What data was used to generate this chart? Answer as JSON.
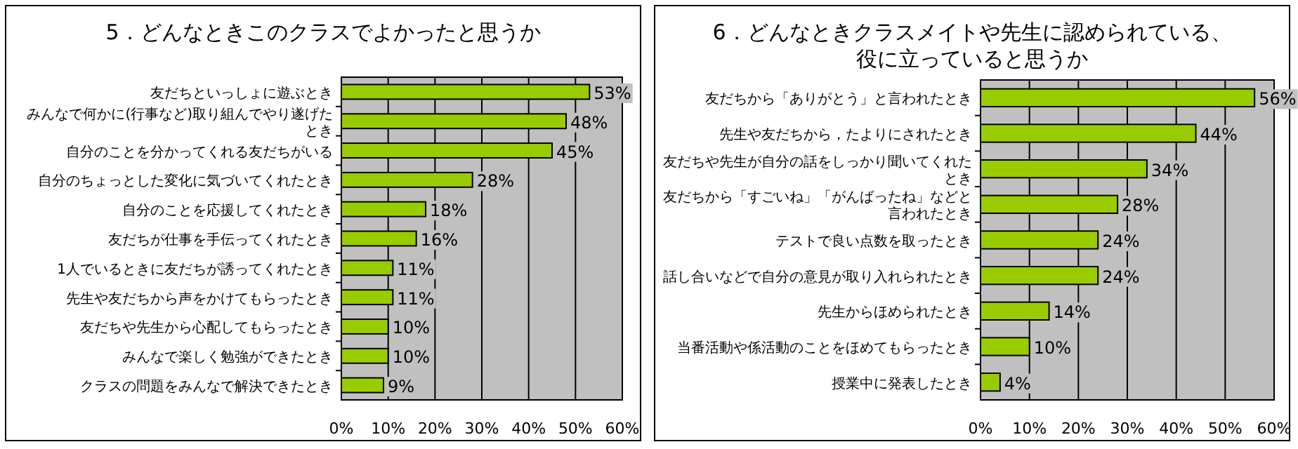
{
  "chart_data": [
    {
      "type": "bar",
      "orientation": "horizontal",
      "title": "5．どんなときこのクラスでよかったと思うか",
      "categories": [
        "友だちといっしょに遊ぶとき",
        "みんなで何かに(行事など)取り組んでやり遂げたとき",
        "自分のことを分かってくれる友だちがいる",
        "自分のちょっとした変化に気づいてくれたとき",
        "自分のことを応援してくれたとき",
        "友だちが仕事を手伝ってくれたとき",
        "1人でいるときに友だちが誘ってくれたとき",
        "先生や友だちから声をかけてもらったとき",
        "友だちや先生から心配してもらったとき",
        "みんなで楽しく勉強ができたとき",
        "クラスの問題をみんなで解決できたとき"
      ],
      "values": [
        53,
        48,
        45,
        28,
        18,
        16,
        11,
        11,
        10,
        10,
        9
      ],
      "value_labels": [
        "53%",
        "48%",
        "45%",
        "28%",
        "18%",
        "16%",
        "11%",
        "11%",
        "10%",
        "10%",
        "9%"
      ],
      "color": "#99cc00",
      "xlim": [
        0,
        60
      ],
      "xticks": [
        {
          "value": 0,
          "label": "0%"
        },
        {
          "value": 10,
          "label": "10%"
        },
        {
          "value": 20,
          "label": "20%"
        },
        {
          "value": 30,
          "label": "30%"
        },
        {
          "value": 40,
          "label": "40%"
        },
        {
          "value": 50,
          "label": "50%"
        },
        {
          "value": 60,
          "label": "60%"
        }
      ],
      "grid": "x"
    },
    {
      "type": "bar",
      "orientation": "horizontal",
      "title": "6．どんなときクラスメイトや先生に認められている、役に立っていると思うか",
      "categories": [
        "友だちから「ありがとう」と言われたとき",
        "先生や友だちから，たよりにされたとき",
        "友だちや先生が自分の話をしっかり聞いてくれたとき",
        "友だちから「すごいね」「がんばったね」などと言われたとき",
        "テストで良い点数を取ったとき",
        "話し合いなどで自分の意見が取り入れられたとき",
        "先生からほめられたとき",
        "当番活動や係活動のことをほめてもらったとき",
        "授業中に発表したとき"
      ],
      "values": [
        56,
        44,
        34,
        28,
        24,
        24,
        14,
        10,
        4
      ],
      "value_labels": [
        "56%",
        "44%",
        "34%",
        "28%",
        "24%",
        "24%",
        "14%",
        "10%",
        "4%"
      ],
      "color": "#99cc00",
      "xlim": [
        0,
        60
      ],
      "xticks": [
        {
          "value": 0,
          "label": "0%"
        },
        {
          "value": 10,
          "label": "10%"
        },
        {
          "value": 20,
          "label": "20%"
        },
        {
          "value": 30,
          "label": "30%"
        },
        {
          "value": 40,
          "label": "40%"
        },
        {
          "value": 50,
          "label": "50%"
        },
        {
          "value": 60,
          "label": "60%"
        }
      ],
      "grid": "x"
    }
  ]
}
